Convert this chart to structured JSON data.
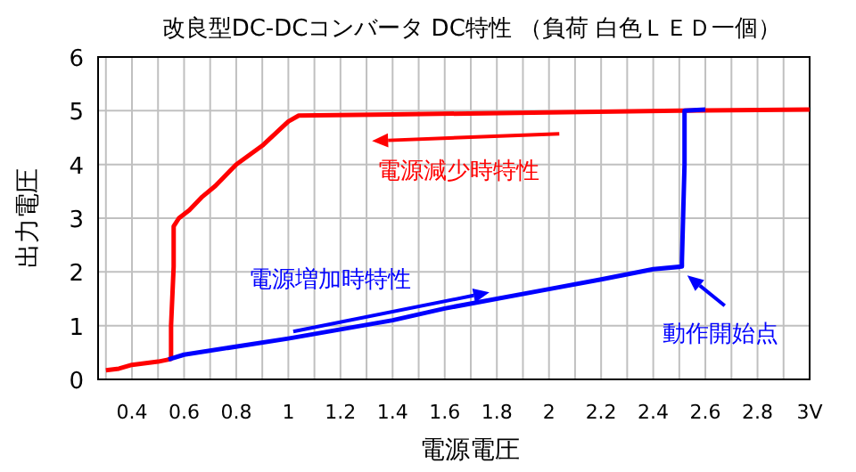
{
  "chart_data": {
    "type": "line",
    "title": "改良型DC-DCコンバータ DC特性 （負荷 白色ＬＥＤ一個）",
    "xlabel": "電源電圧",
    "ylabel": "出力電圧",
    "xlim": [
      0.27,
      3.0
    ],
    "ylim": [
      0,
      6
    ],
    "xticks": [
      {
        "value": 0.3,
        "label": null
      },
      0.4,
      {
        "value": 0.5,
        "label": null
      },
      0.6,
      {
        "value": 0.7,
        "label": null
      },
      0.8,
      {
        "value": 0.9,
        "label": null
      },
      1,
      {
        "value": 1.1,
        "label": null
      },
      1.2,
      {
        "value": 1.3,
        "label": null
      },
      1.4,
      {
        "value": 1.5,
        "label": null
      },
      1.6,
      {
        "value": 1.7,
        "label": null
      },
      1.8,
      {
        "value": 1.9,
        "label": null
      },
      2,
      {
        "value": 2.1,
        "label": null
      },
      2.2,
      {
        "value": 2.3,
        "label": null
      },
      2.4,
      {
        "value": 2.5,
        "label": null
      },
      2.6,
      {
        "value": 2.7,
        "label": null
      },
      2.8,
      {
        "value": 2.9,
        "label": null
      },
      {
        "value": 3,
        "label": "3V"
      }
    ],
    "yticks": [
      0,
      1,
      2,
      3,
      4,
      5,
      6
    ],
    "grid": true,
    "marker": "none",
    "line_style": "solid",
    "series": [
      {
        "color": "#ff0000",
        "x": [
          0.3,
          0.35,
          0.4,
          0.5,
          0.55,
          0.55,
          0.56,
          0.56,
          0.58,
          0.62,
          0.67,
          0.72,
          0.75,
          0.8,
          0.9,
          1.0,
          1.04,
          1.4,
          2.0,
          2.5,
          3.0
        ],
        "values": [
          0.17,
          0.2,
          0.27,
          0.33,
          0.38,
          1.0,
          2.1,
          2.85,
          3.0,
          3.15,
          3.4,
          3.6,
          3.75,
          4.0,
          4.35,
          4.8,
          4.91,
          4.93,
          4.97,
          5.0,
          5.02
        ]
      },
      {
        "color": "#0000ff",
        "x": [
          0.54,
          0.6,
          1.0,
          1.4,
          1.6,
          2.0,
          2.2,
          2.4,
          2.51,
          2.51,
          2.52,
          2.52,
          2.6
        ],
        "values": [
          0.37,
          0.46,
          0.76,
          1.1,
          1.32,
          1.68,
          1.86,
          2.05,
          2.1,
          2.2,
          4.0,
          5.0,
          5.02
        ]
      }
    ],
    "annotations": [
      "電源減少時特性",
      "電源増加時特性",
      {
        "text": "動作開始点",
        "x": 2.51,
        "y": 2.1
      }
    ]
  }
}
